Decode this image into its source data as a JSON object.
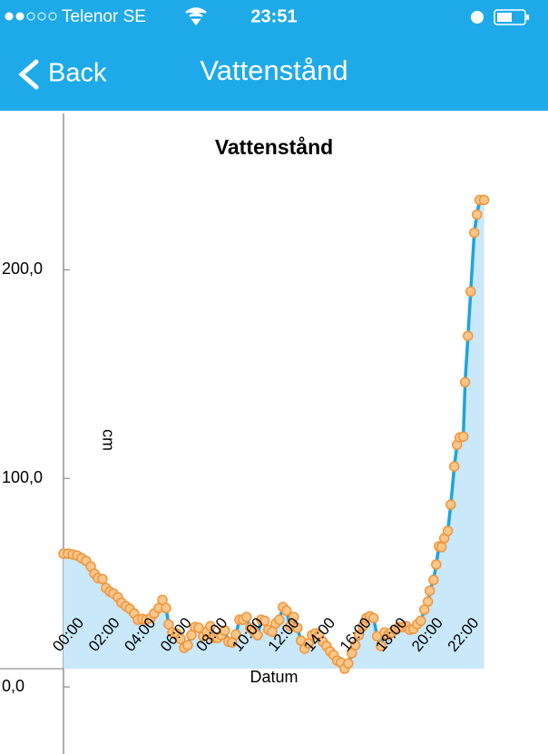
{
  "status_bar": {
    "carrier": "Telenor SE",
    "time": "23:51"
  },
  "nav": {
    "back": "Back",
    "title": "Vattenstånd"
  },
  "chart_data": {
    "type": "area-line",
    "title": "Vattenstånd",
    "x_label": "Datum",
    "y_label": "cm",
    "line_color": "#1ea3e1",
    "fill_color": "#c9e8fa",
    "marker_color": "#fbc68a",
    "marker_edge": "#f0953a",
    "x": [
      0,
      0.25,
      0.51,
      0.76,
      1.01,
      1.26,
      1.52,
      1.72,
      1.92,
      2.17,
      2.37,
      2.58,
      2.78,
      3.03,
      3.23,
      3.48,
      3.69,
      3.94,
      4.14,
      4.39,
      4.6,
      4.85,
      5.05,
      5.3,
      5.51,
      5.71,
      5.86,
      6.06,
      6.31,
      6.52,
      6.72,
      6.92,
      7.12,
      7.32,
      7.53,
      7.78,
      7.98,
      8.18,
      8.38,
      8.59,
      8.79,
      8.99,
      9.19,
      9.39,
      9.6,
      9.8,
      10,
      10.2,
      10.4,
      10.61,
      10.81,
      11.01,
      11.21,
      11.41,
      11.62,
      11.82,
      12.02,
      12.22,
      12.42,
      12.63,
      12.83,
      13.03,
      13.23,
      13.43,
      13.64,
      13.84,
      14.04,
      14.24,
      14.44,
      14.65,
      14.85,
      15.05,
      15.25,
      15.45,
      15.66,
      15.86,
      16.06,
      16.26,
      16.46,
      16.67,
      16.87,
      17.07,
      17.27,
      17.47,
      17.68,
      17.88,
      18.08,
      18.28,
      18.48,
      18.69,
      18.89,
      19.09,
      19.29,
      19.49,
      19.7,
      19.9,
      20.1,
      20.3,
      20.4,
      20.61,
      20.76,
      20.91,
      21.06,
      21.21,
      21.41,
      21.57,
      21.77,
      21.92,
      22.07,
      22.27,
      22.37,
      22.53,
      22.68,
      22.88,
      23.03,
      23.18,
      23.43
    ],
    "values": [
      63.9,
      63.9,
      63.5,
      63.0,
      61.7,
      60.4,
      57.8,
      54.3,
      52.2,
      51.7,
      47.4,
      45.7,
      44.8,
      43.0,
      40.4,
      38.7,
      37.4,
      35.2,
      32.2,
      32.6,
      32.2,
      33.0,
      35.2,
      37.8,
      41.7,
      37.8,
      30.0,
      26.1,
      25.7,
      23.0,
      18.7,
      20.0,
      24.8,
      28.7,
      28.3,
      24.3,
      26.5,
      29.1,
      23.5,
      23.5,
      24.8,
      27.0,
      21.7,
      21.3,
      25.2,
      32.2,
      32.2,
      33.5,
      28.3,
      26.5,
      24.8,
      32.2,
      31.7,
      27.4,
      26.5,
      30.4,
      32.2,
      38.3,
      36.5,
      29.1,
      33.5,
      28.3,
      22.2,
      18.3,
      20.9,
      24.8,
      25.7,
      24.8,
      21.7,
      19.6,
      17.0,
      15.2,
      12.6,
      11.7,
      8.7,
      11.3,
      16.1,
      20.0,
      24.8,
      29.1,
      33.0,
      33.9,
      33.0,
      24.3,
      19.6,
      26.1,
      24.8,
      26.1,
      27.4,
      28.7,
      28.7,
      29.1,
      27.4,
      27.8,
      30.0,
      31.7,
      37.0,
      40.9,
      46.1,
      51.3,
      58.7,
      67.4,
      67.0,
      71.3,
      74.8,
      87.4,
      105.7,
      116.1,
      119.6,
      120.0,
      146.1,
      168.3,
      189.6,
      217.8,
      226.5,
      233.5,
      233.5
    ],
    "xlim": [
      0,
      23.5
    ],
    "xticks": [
      {
        "value": 0,
        "label": "00:00"
      },
      {
        "value": 2,
        "label": "02:00"
      },
      {
        "value": 4,
        "label": "04:00"
      },
      {
        "value": 6,
        "label": "06:00"
      },
      {
        "value": 8,
        "label": "08:00"
      },
      {
        "value": 10,
        "label": "10:00"
      },
      {
        "value": 12,
        "label": "12:00"
      },
      {
        "value": 14,
        "label": "14:00"
      },
      {
        "value": 16,
        "label": "16:00"
      },
      {
        "value": 18,
        "label": "18:00"
      },
      {
        "value": 20,
        "label": "20:00"
      },
      {
        "value": 22,
        "label": "22:00"
      }
    ],
    "ylim": [
      -30,
      275
    ],
    "yticks": [
      {
        "value": 0,
        "label": "0,0"
      },
      {
        "value": 100,
        "label": "100,0"
      },
      {
        "value": 200,
        "label": "200,0"
      }
    ]
  }
}
